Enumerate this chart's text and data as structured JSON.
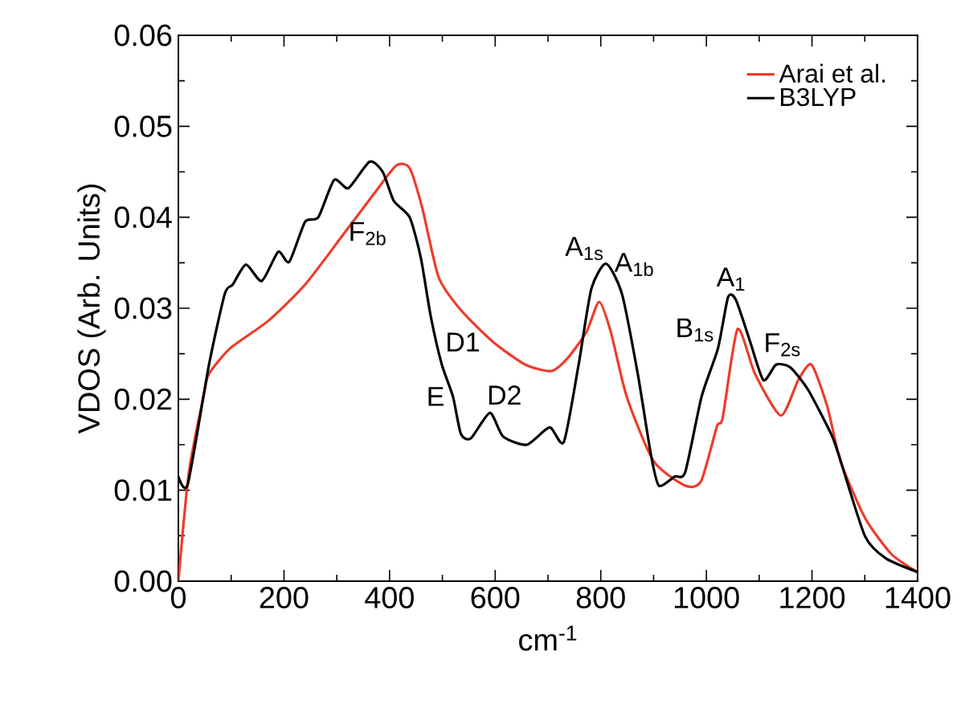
{
  "chart_data": {
    "type": "line",
    "xlabel": "cm$^{-1}$",
    "ylabel": "VDOS (Arb. Units)",
    "xlim": [
      0,
      1400
    ],
    "xticks": [
      0,
      200,
      400,
      600,
      800,
      1000,
      1200,
      1400
    ],
    "ylim": [
      0,
      0.06
    ],
    "yticks": [
      {
        "value": 0,
        "label": "0.00"
      },
      {
        "value": 0.01,
        "label": "0.01"
      },
      {
        "value": 0.02,
        "label": "0.02"
      },
      {
        "value": 0.03,
        "label": "0.03"
      },
      {
        "value": 0.04,
        "label": "0.04"
      },
      {
        "value": 0.05,
        "label": "0.05"
      },
      {
        "value": 0.06,
        "label": "0.06"
      }
    ],
    "legend": "top right",
    "grid": false,
    "marker": "none",
    "line_style": "solid",
    "series": [
      {
        "name": "Arai et al.",
        "color": "#ee3b2a",
        "x": [
          0,
          20,
          50,
          58,
          98,
          170,
          240,
          311,
          372,
          413,
          438,
          462,
          493,
          535,
          596,
          657,
          706,
          737,
          773,
          797,
          819,
          849,
          900,
          960,
          990,
          1020,
          1031,
          1059,
          1092,
          1141,
          1174,
          1199,
          1229,
          1254,
          1300,
          1350,
          1400
        ],
        "values": [
          0,
          0.012,
          0.021,
          0.0228,
          0.0256,
          0.0286,
          0.0326,
          0.038,
          0.0427,
          0.0457,
          0.0454,
          0.041,
          0.0334,
          0.0298,
          0.0263,
          0.0238,
          0.0231,
          0.0245,
          0.0274,
          0.0307,
          0.0274,
          0.0203,
          0.0132,
          0.0105,
          0.011,
          0.017,
          0.018,
          0.0277,
          0.0228,
          0.0182,
          0.0221,
          0.0238,
          0.0192,
          0.0132,
          0.007,
          0.003,
          0.001
        ]
      },
      {
        "name": "B3LYP",
        "color": "#000000",
        "x": [
          0,
          18,
          58,
          88,
          103,
          128,
          158,
          189,
          210,
          240,
          265,
          295,
          322,
          362,
          387,
          408,
          438,
          459,
          478,
          499,
          520,
          535,
          554,
          590,
          615,
          660,
          703,
          730,
          758,
          782,
          810,
          840,
          870,
          895,
          910,
          940,
          960,
          991,
          1022,
          1041,
          1056,
          1083,
          1108,
          1132,
          1159,
          1193,
          1236,
          1250,
          1300,
          1340,
          1400
        ],
        "values": [
          0.0115,
          0.0107,
          0.0238,
          0.0316,
          0.0326,
          0.0348,
          0.033,
          0.0362,
          0.0351,
          0.0395,
          0.04,
          0.0441,
          0.0432,
          0.0461,
          0.045,
          0.0418,
          0.04,
          0.0356,
          0.0291,
          0.0238,
          0.0203,
          0.0162,
          0.0157,
          0.0185,
          0.0159,
          0.015,
          0.0169,
          0.0153,
          0.0238,
          0.0321,
          0.0349,
          0.0316,
          0.0228,
          0.0139,
          0.0105,
          0.0115,
          0.012,
          0.0203,
          0.0256,
          0.0312,
          0.0309,
          0.0263,
          0.0221,
          0.0238,
          0.0235,
          0.021,
          0.0162,
          0.014,
          0.005,
          0.0025,
          0.001
        ]
      }
    ],
    "annotations": [
      {
        "text": "F$_{2b}$",
        "x": 408,
        "y": 0.0418
      },
      {
        "text": "D1",
        "x": 499,
        "y": 0.0238
      },
      {
        "text": "E",
        "x": 520,
        "y": 0.0203
      },
      {
        "text": "D2",
        "x": 590,
        "y": 0.0185
      },
      {
        "text": "A$_{1s}$",
        "x": 810,
        "y": 0.0349
      },
      {
        "text": "A$_{1b}$",
        "x": 810,
        "y": 0.0349
      },
      {
        "text": "B$_{1s}$",
        "x": 1022,
        "y": 0.0256
      },
      {
        "text": "A$_{1}$",
        "x": 1041,
        "y": 0.0312
      },
      {
        "text": "F$_{2s}$",
        "x": 1132,
        "y": 0.0238
      }
    ]
  }
}
